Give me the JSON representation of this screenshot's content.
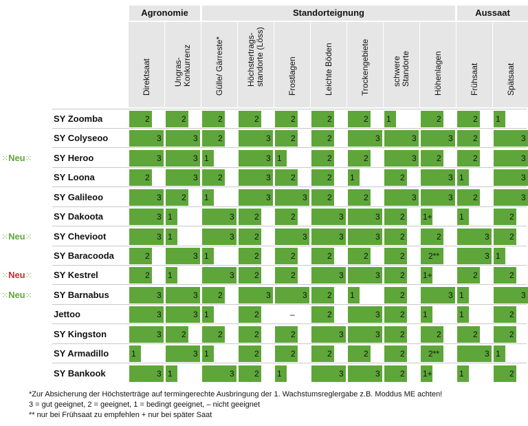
{
  "groups": [
    {
      "label": "Agronomie",
      "start": 0,
      "end": 1
    },
    {
      "label": "Standorteignung",
      "start": 2,
      "end": 8
    },
    {
      "label": "Aussaat",
      "start": 9,
      "end": 10
    }
  ],
  "columns": [
    "Direktsaat",
    "Ungras-\nKonkurrenz",
    "Gülle/ Gärreste*",
    "Höchstertrags-\nstandorte (Löss)",
    "Frostlagen",
    "Leichte Böden",
    "Trockengebiete",
    "schwere\nStandorte",
    "Höhenlagen",
    "Frühsaat",
    "Spätsaat"
  ],
  "colors": {
    "bar": "#5ea63a",
    "header": "#e6e6e6",
    "neu_green": "#5ea63a",
    "neu_red": "#d7262a"
  },
  "rows": [
    {
      "name": "SY Zoomba",
      "neu": "",
      "values": [
        "2",
        "2",
        "2",
        "2",
        "2",
        "2",
        "2",
        "1",
        "2",
        "2",
        "1"
      ]
    },
    {
      "name": "SY Colyseoo",
      "neu": "",
      "values": [
        "3",
        "3",
        "2",
        "3",
        "2",
        "2",
        "3",
        "3",
        "3",
        "2",
        "3"
      ]
    },
    {
      "name": "SY Heroo",
      "neu": "Neu",
      "neu_color": "green",
      "values": [
        "3",
        "3",
        "1",
        "3",
        "1",
        "2",
        "2",
        "3",
        "2",
        "2",
        "3"
      ]
    },
    {
      "name": "SY Loona",
      "neu": "",
      "values": [
        "2",
        "3",
        "2",
        "3",
        "2",
        "2",
        "1",
        "2",
        "3",
        "1",
        "3"
      ]
    },
    {
      "name": "SY Galileoo",
      "neu": "",
      "values": [
        "3",
        "2",
        "1",
        "3",
        "3",
        "2",
        "2",
        "3",
        "3",
        "2",
        "3"
      ]
    },
    {
      "name": "SY Dakoota",
      "neu": "",
      "values": [
        "3",
        "1",
        "3",
        "2",
        "2",
        "3",
        "3",
        "2",
        "1+",
        "1",
        "2"
      ]
    },
    {
      "name": "SY Chevioot",
      "neu": "Neu",
      "neu_color": "green",
      "values": [
        "3",
        "1",
        "3",
        "2",
        "3",
        "3",
        "3",
        "2",
        "2",
        "3",
        "2"
      ]
    },
    {
      "name": "SY Baracooda",
      "neu": "",
      "values": [
        "2",
        "3",
        "1",
        "2",
        "2",
        "2",
        "2",
        "2",
        "2**",
        "3",
        "1"
      ]
    },
    {
      "name": "SY Kestrel",
      "neu": "Neu",
      "neu_color": "red",
      "values": [
        "2",
        "1",
        "3",
        "2",
        "2",
        "3",
        "3",
        "2",
        "1+",
        "2",
        "2"
      ]
    },
    {
      "name": "SY Barnabus",
      "neu": "Neu",
      "neu_color": "green",
      "values": [
        "3",
        "3",
        "2",
        "3",
        "3",
        "2",
        "1",
        "2",
        "3",
        "1",
        "3"
      ]
    },
    {
      "name": "Jettoo",
      "neu": "",
      "values": [
        "3",
        "3",
        "1",
        "2",
        "–",
        "2",
        "3",
        "2",
        "1",
        "1",
        "2"
      ]
    },
    {
      "name": "SY Kingston",
      "neu": "",
      "values": [
        "3",
        "2",
        "2",
        "2",
        "2",
        "3",
        "3",
        "2",
        "2",
        "2",
        "2"
      ]
    },
    {
      "name": "SY Armadillo",
      "neu": "",
      "values": [
        "1",
        "3",
        "1",
        "2",
        "2",
        "2",
        "2",
        "2",
        "2**",
        "3",
        "1"
      ]
    },
    {
      "name": "SY Bankook",
      "neu": "",
      "values": [
        "3",
        "1",
        "3",
        "2",
        "1",
        "3",
        "3",
        "2",
        "1+",
        "1",
        "2"
      ]
    }
  ],
  "footnotes": [
    "*Zur Absicherung der Höchsterträge auf termingerechte Ausbringung der 1. Wachstumsreglergabe z.B. Moddus ME achten!",
    "3 = gut geeignet, 2 = geeignet, 1 = bedingt geeignet, – nicht geeignet",
    "** nur bei Frühsaat zu empfehlen    + nur bei später Saat"
  ]
}
